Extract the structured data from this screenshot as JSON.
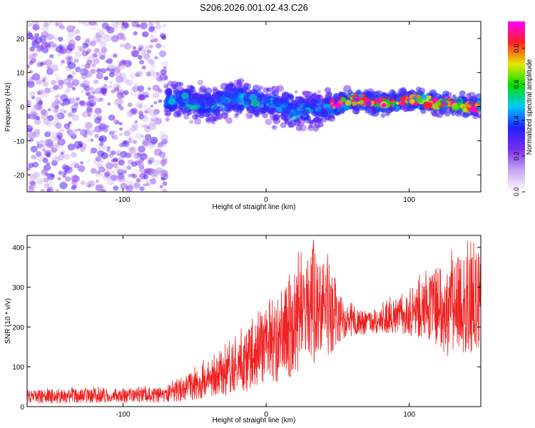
{
  "title": "S206.2026.001.02.43.C26",
  "chart_data": [
    {
      "type": "heatmap",
      "xlabel": "Height of straight line (km)",
      "ylabel": "Frequency (Hz)",
      "xlim": [
        -167,
        150
      ],
      "ylim": [
        -25,
        25
      ],
      "x_ticks": [
        "-100",
        "0",
        "100"
      ],
      "x_tick_values": [
        -100,
        0,
        100
      ],
      "y_ticks": [
        "20",
        "10",
        "0",
        "-10",
        "-20"
      ],
      "y_tick_values": [
        20,
        10,
        0,
        -10,
        -20
      ],
      "colorbar": {
        "label": "Normalized spectral amplitude",
        "range": [
          0,
          0.95
        ],
        "ticks": [
          "0.0",
          "0.2",
          "0.4",
          "0.6",
          "0.8"
        ],
        "tick_values": [
          0,
          0.2,
          0.4,
          0.6,
          0.8
        ],
        "colormap": [
          "#ffffff",
          "#c8a8f0",
          "#7b2cf0",
          "#2020ff",
          "#00c8ff",
          "#00e000",
          "#e8e800",
          "#ff2020",
          "#ff00ff"
        ]
      },
      "ridge": [
        {
          "x": -60,
          "y": 2
        },
        {
          "x": -40,
          "y": 0
        },
        {
          "x": -20,
          "y": 3
        },
        {
          "x": 0,
          "y": 1
        },
        {
          "x": 20,
          "y": -1
        },
        {
          "x": 40,
          "y": -1
        },
        {
          "x": 45,
          "y": 0
        },
        {
          "x": 60,
          "y": 2
        },
        {
          "x": 80,
          "y": 1
        },
        {
          "x": 100,
          "y": 2
        },
        {
          "x": 120,
          "y": 1
        },
        {
          "x": 140,
          "y": 0
        }
      ]
    },
    {
      "type": "line",
      "xlabel": "Height of straight line (km)",
      "ylabel": "SNR (10 * v/v)",
      "xlim": [
        -167,
        150
      ],
      "ylim": [
        0,
        430
      ],
      "x_ticks": [
        "-100",
        "0",
        "100"
      ],
      "x_tick_values": [
        -100,
        0,
        100
      ],
      "y_ticks": [
        "400",
        "300",
        "200",
        "100",
        "0"
      ],
      "y_tick_values": [
        400,
        300,
        200,
        100,
        0
      ],
      "series": [
        {
          "color": "#ee2222",
          "envelope": [
            {
              "x": -167,
              "low": 8,
              "high": 40
            },
            {
              "x": -130,
              "low": 8,
              "high": 45
            },
            {
              "x": -100,
              "low": 10,
              "high": 45
            },
            {
              "x": -70,
              "low": 10,
              "high": 50
            },
            {
              "x": -50,
              "low": 15,
              "high": 90
            },
            {
              "x": -30,
              "low": 25,
              "high": 140
            },
            {
              "x": -10,
              "low": 40,
              "high": 200
            },
            {
              "x": 10,
              "low": 60,
              "high": 280
            },
            {
              "x": 30,
              "low": 100,
              "high": 400
            },
            {
              "x": 45,
              "low": 130,
              "high": 360
            },
            {
              "x": 55,
              "low": 175,
              "high": 260
            },
            {
              "x": 70,
              "low": 180,
              "high": 235
            },
            {
              "x": 90,
              "low": 185,
              "high": 270
            },
            {
              "x": 110,
              "low": 170,
              "high": 320
            },
            {
              "x": 130,
              "low": 120,
              "high": 380
            },
            {
              "x": 150,
              "low": 130,
              "high": 380
            }
          ]
        }
      ]
    }
  ]
}
